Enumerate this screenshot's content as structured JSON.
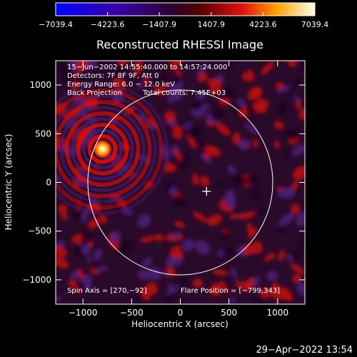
{
  "colorbar": {
    "tick_labels": [
      "−7039.4",
      "−4223.6",
      "−1407.9",
      "1407.9",
      "4223.6",
      "7039.4"
    ],
    "min": -7039.4,
    "max": 7039.4
  },
  "plot": {
    "title": "Reconstructed RHESSI Image",
    "xlabel": "Heliocentric X (arcsec)",
    "ylabel": "Heliocentric Y (arcsec)",
    "xlim": [
      -1280,
      1280
    ],
    "ylim": [
      -1250,
      1250
    ],
    "x_ticks": [
      "−1000",
      "−500",
      "0",
      "500",
      "1000"
    ],
    "y_ticks": [
      "1000",
      "500",
      "0",
      "−500",
      "−1000"
    ],
    "info_lines": [
      "15−Jun−2002 14:55:40.000 to 14:57:24.000",
      "Detectors: 7F 8F 9F, Att 0",
      "Energy Range: 6.0 − 12.0 keV",
      "Back Projection"
    ],
    "total_counts": "Total counts: 7.45E+03",
    "spin_axis": "Spin Axis = [270,−92]",
    "flare_position": "Flare Position = [−799,343]",
    "solar_limb_radius_arcsec": 950,
    "solar_center_arcsec": [
      0,
      0
    ],
    "source_position_arcsec": [
      -799,
      343
    ],
    "crosshair_position_arcsec": [
      270,
      -92
    ]
  },
  "footer": {
    "timestamp": "29−Apr−2022 13:54"
  }
}
